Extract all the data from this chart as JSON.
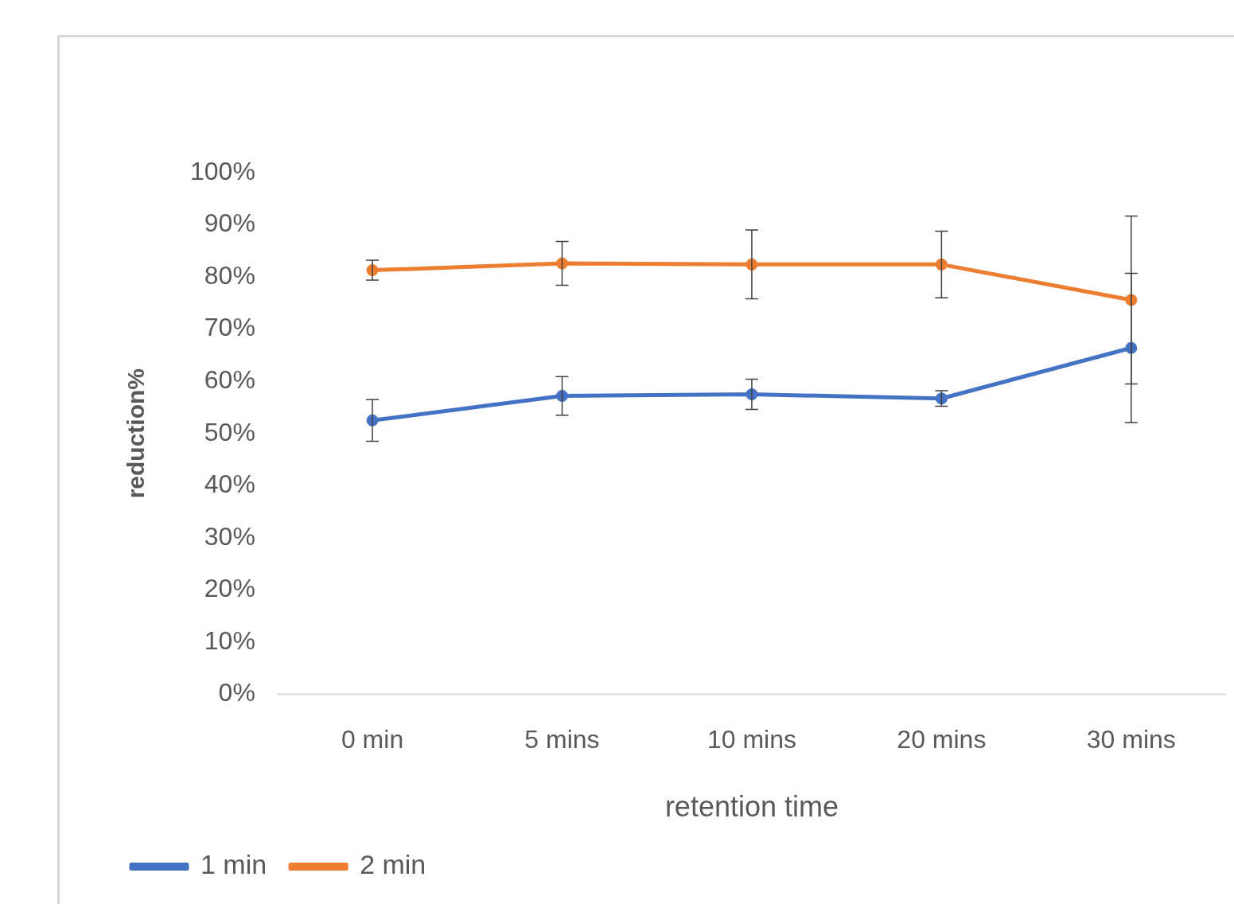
{
  "chart_data": {
    "type": "line",
    "xlabel": "retention time",
    "ylabel": "reduction%",
    "categories": [
      "0 min",
      "5 mins",
      "10 mins",
      "20 mins",
      "30 mins"
    ],
    "series": [
      {
        "name": "1 min",
        "color": "#4472c4",
        "values": [
          52.5,
          57.2,
          57.5,
          56.7,
          66.4
        ],
        "errors": [
          4,
          3.7,
          2.9,
          1.5,
          14.3
        ]
      },
      {
        "name": "2 min",
        "color": "#ed7d31",
        "values": [
          81.3,
          82.6,
          82.4,
          82.4,
          75.6
        ],
        "errors": [
          1.9,
          4.2,
          6.6,
          6.4,
          16.1
        ]
      }
    ],
    "ylim": [
      0,
      100
    ],
    "yticks": [
      {
        "value": 0,
        "label": "0%"
      },
      {
        "value": 10,
        "label": "10%"
      },
      {
        "value": 20,
        "label": "20%"
      },
      {
        "value": 30,
        "label": "30%"
      },
      {
        "value": 40,
        "label": "40%"
      },
      {
        "value": 50,
        "label": "50%"
      },
      {
        "value": 60,
        "label": "60%"
      },
      {
        "value": 70,
        "label": "70%"
      },
      {
        "value": 80,
        "label": "80%"
      },
      {
        "value": 90,
        "label": "90%"
      },
      {
        "value": 100,
        "label": "100%"
      }
    ],
    "grid": false,
    "legend": "bottom left",
    "marker": "circle",
    "line_style": "solid"
  }
}
